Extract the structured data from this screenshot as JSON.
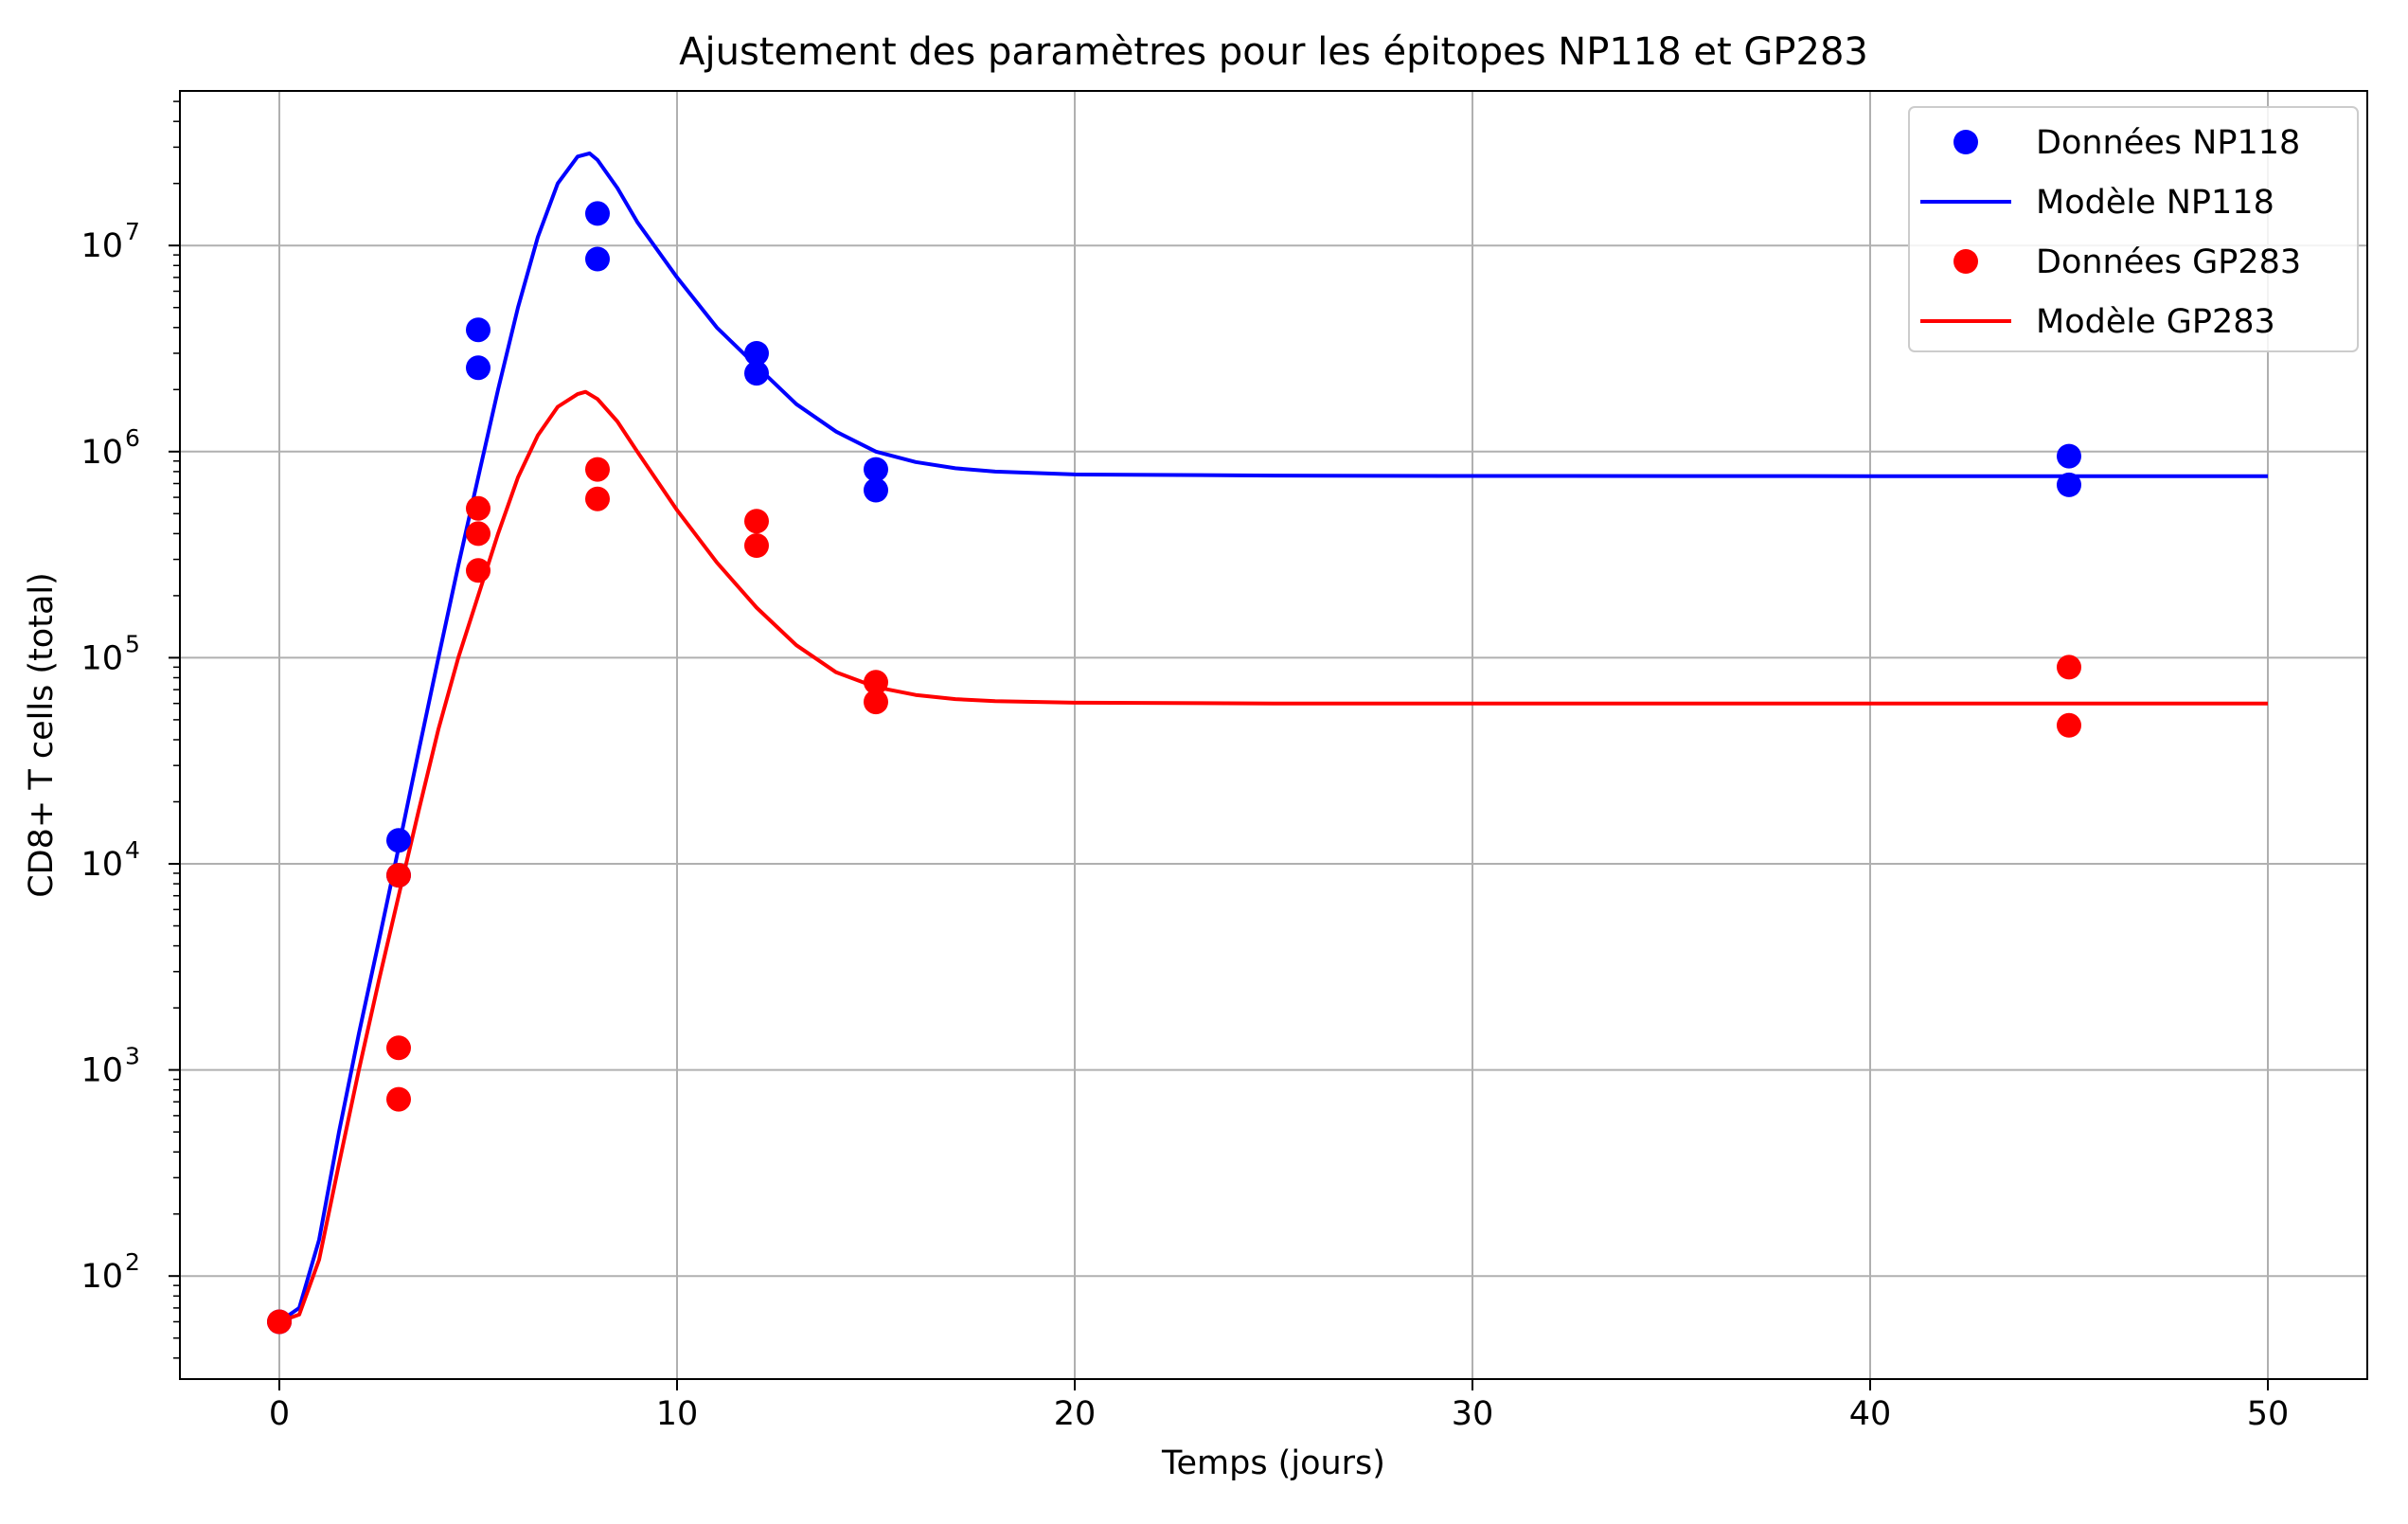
{
  "chart_data": {
    "type": "scatter",
    "title": "Ajustement des paramètres pour les épitopes NP118 et GP283",
    "xlabel": "Temps (jours)",
    "ylabel": "CD8+ T cells (total)",
    "xlim": [
      -2.5,
      52.5
    ],
    "ylim_log10": [
      1.5,
      7.75
    ],
    "yscale": "log",
    "grid": true,
    "legend_position": "upper right",
    "x_ticks": [
      0,
      10,
      20,
      30,
      40,
      50
    ],
    "x_tick_labels": [
      "0",
      "10",
      "20",
      "30",
      "40",
      "50"
    ],
    "y_ticks_log10": [
      2,
      3,
      4,
      5,
      6,
      7
    ],
    "y_tick_base": "10",
    "y_tick_exponents": [
      "2",
      "3",
      "4",
      "5",
      "6",
      "7"
    ],
    "series": [
      {
        "name": "Données NP118",
        "kind": "points",
        "color": "#0000ff",
        "points": [
          [
            0,
            60
          ],
          [
            3,
            13000
          ],
          [
            3,
            8800
          ],
          [
            5,
            3900000
          ],
          [
            5,
            2550000
          ],
          [
            8,
            14300000
          ],
          [
            8,
            8600000
          ],
          [
            12,
            3000000
          ],
          [
            12,
            2400000
          ],
          [
            15,
            820000
          ],
          [
            15,
            650000
          ],
          [
            45,
            950000
          ],
          [
            45,
            690000
          ]
        ]
      },
      {
        "name": "Modèle NP118",
        "kind": "line",
        "color": "#0000ff",
        "points": [
          [
            0,
            60
          ],
          [
            0.5,
            70
          ],
          [
            1,
            150
          ],
          [
            1.5,
            500
          ],
          [
            2,
            1500
          ],
          [
            2.5,
            4200
          ],
          [
            3,
            12000
          ],
          [
            3.5,
            35000
          ],
          [
            4,
            100000
          ],
          [
            4.5,
            280000
          ],
          [
            5,
            750000
          ],
          [
            5.5,
            2000000
          ],
          [
            6,
            5000000
          ],
          [
            6.5,
            11000000
          ],
          [
            7,
            20000000
          ],
          [
            7.5,
            27000000
          ],
          [
            7.8,
            28000000
          ],
          [
            8,
            26000000
          ],
          [
            8.5,
            19000000
          ],
          [
            9,
            13000000
          ],
          [
            10,
            7000000
          ],
          [
            11,
            4000000
          ],
          [
            12,
            2600000
          ],
          [
            13,
            1700000
          ],
          [
            14,
            1250000
          ],
          [
            15,
            1000000
          ],
          [
            16,
            890000
          ],
          [
            17,
            830000
          ],
          [
            18,
            800000
          ],
          [
            20,
            775000
          ],
          [
            25,
            765000
          ],
          [
            30,
            762000
          ],
          [
            40,
            760000
          ],
          [
            50,
            760000
          ]
        ]
      },
      {
        "name": "Données GP283",
        "kind": "points",
        "color": "#ff0000",
        "points": [
          [
            0,
            60
          ],
          [
            3,
            8800
          ],
          [
            3,
            1280
          ],
          [
            3,
            720
          ],
          [
            5,
            530000
          ],
          [
            5,
            400000
          ],
          [
            5,
            265000
          ],
          [
            8,
            820000
          ],
          [
            8,
            590000
          ],
          [
            12,
            460000
          ],
          [
            12,
            350000
          ],
          [
            15,
            76000
          ],
          [
            15,
            61000
          ],
          [
            45,
            90000
          ],
          [
            45,
            47000
          ]
        ]
      },
      {
        "name": "Modèle GP283",
        "kind": "line",
        "color": "#ff0000",
        "points": [
          [
            0,
            60
          ],
          [
            0.5,
            65
          ],
          [
            1,
            120
          ],
          [
            1.5,
            350
          ],
          [
            2,
            1000
          ],
          [
            2.5,
            2700
          ],
          [
            3,
            7000
          ],
          [
            3.5,
            18000
          ],
          [
            4,
            45000
          ],
          [
            4.5,
            100000
          ],
          [
            5,
            200000
          ],
          [
            5.5,
            400000
          ],
          [
            6,
            750000
          ],
          [
            6.5,
            1200000
          ],
          [
            7,
            1650000
          ],
          [
            7.5,
            1900000
          ],
          [
            7.7,
            1950000
          ],
          [
            8,
            1800000
          ],
          [
            8.5,
            1400000
          ],
          [
            9,
            1000000
          ],
          [
            10,
            520000
          ],
          [
            11,
            290000
          ],
          [
            12,
            175000
          ],
          [
            13,
            115000
          ],
          [
            14,
            85000
          ],
          [
            15,
            72000
          ],
          [
            16,
            66000
          ],
          [
            17,
            63000
          ],
          [
            18,
            61500
          ],
          [
            20,
            60500
          ],
          [
            25,
            60000
          ],
          [
            30,
            60000
          ],
          [
            40,
            60000
          ],
          [
            50,
            60000
          ]
        ]
      }
    ]
  }
}
